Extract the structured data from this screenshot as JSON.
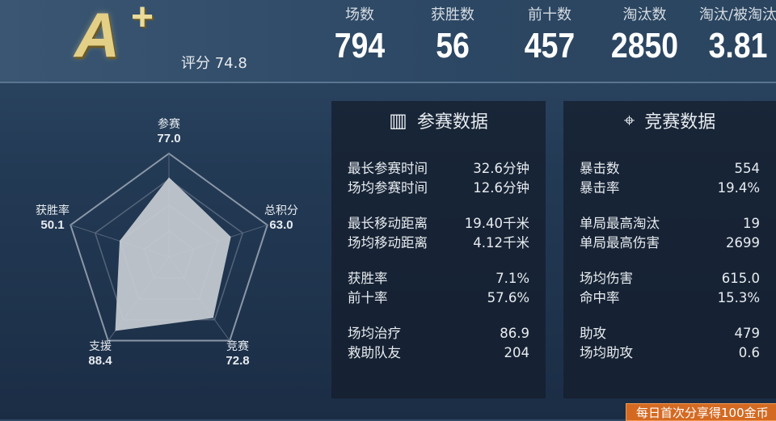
{
  "header": {
    "grade": "A",
    "grade_plus": "+",
    "score_label": "评分 74.8",
    "stats": [
      {
        "label": "场数",
        "value": "794"
      },
      {
        "label": "获胜数",
        "value": "56"
      },
      {
        "label": "前十数",
        "value": "457"
      },
      {
        "label": "淘汰数",
        "value": "2850"
      },
      {
        "label": "淘汰/被淘汰",
        "value": "3.81"
      }
    ]
  },
  "chart_data": {
    "type": "radar",
    "axes": [
      {
        "label": "参赛",
        "value": 77.0,
        "display": "77.0"
      },
      {
        "label": "总积分",
        "value": 63.0,
        "display": "63.0"
      },
      {
        "label": "竞赛",
        "value": 72.8,
        "display": "72.8"
      },
      {
        "label": "支援",
        "value": 88.4,
        "display": "88.4"
      },
      {
        "label": "获胜率",
        "value": 50.1,
        "display": "50.1"
      }
    ],
    "range": [
      0,
      100
    ],
    "levels": 4,
    "fill_color": "#c8ccd2"
  },
  "participation": {
    "title": "参赛数据",
    "icon": "bar-chart-icon",
    "groups": [
      [
        {
          "k": "最长参赛时间",
          "v": "32.6分钟"
        },
        {
          "k": "场均参赛时间",
          "v": "12.6分钟"
        }
      ],
      [
        {
          "k": "最长移动距离",
          "v": "19.40千米"
        },
        {
          "k": "场均移动距离",
          "v": "4.12千米"
        }
      ],
      [
        {
          "k": "获胜率",
          "v": "7.1%"
        },
        {
          "k": "前十率",
          "v": "57.6%"
        }
      ],
      [
        {
          "k": "场均治疗",
          "v": "86.9"
        },
        {
          "k": "救助队友",
          "v": "204"
        }
      ]
    ]
  },
  "competition": {
    "title": "竞赛数据",
    "icon": "crosshair-icon",
    "groups": [
      [
        {
          "k": "暴击数",
          "v": "554"
        },
        {
          "k": "暴击率",
          "v": "19.4%"
        }
      ],
      [
        {
          "k": "单局最高淘汰",
          "v": "19"
        },
        {
          "k": "单局最高伤害",
          "v": "2699"
        }
      ],
      [
        {
          "k": "场均伤害",
          "v": "615.0"
        },
        {
          "k": "命中率",
          "v": "15.3%"
        }
      ],
      [
        {
          "k": "助攻",
          "v": "479"
        },
        {
          "k": "场均助攻",
          "v": "0.6"
        }
      ]
    ]
  },
  "footer": {
    "text": "每日首次分享得100金币"
  }
}
